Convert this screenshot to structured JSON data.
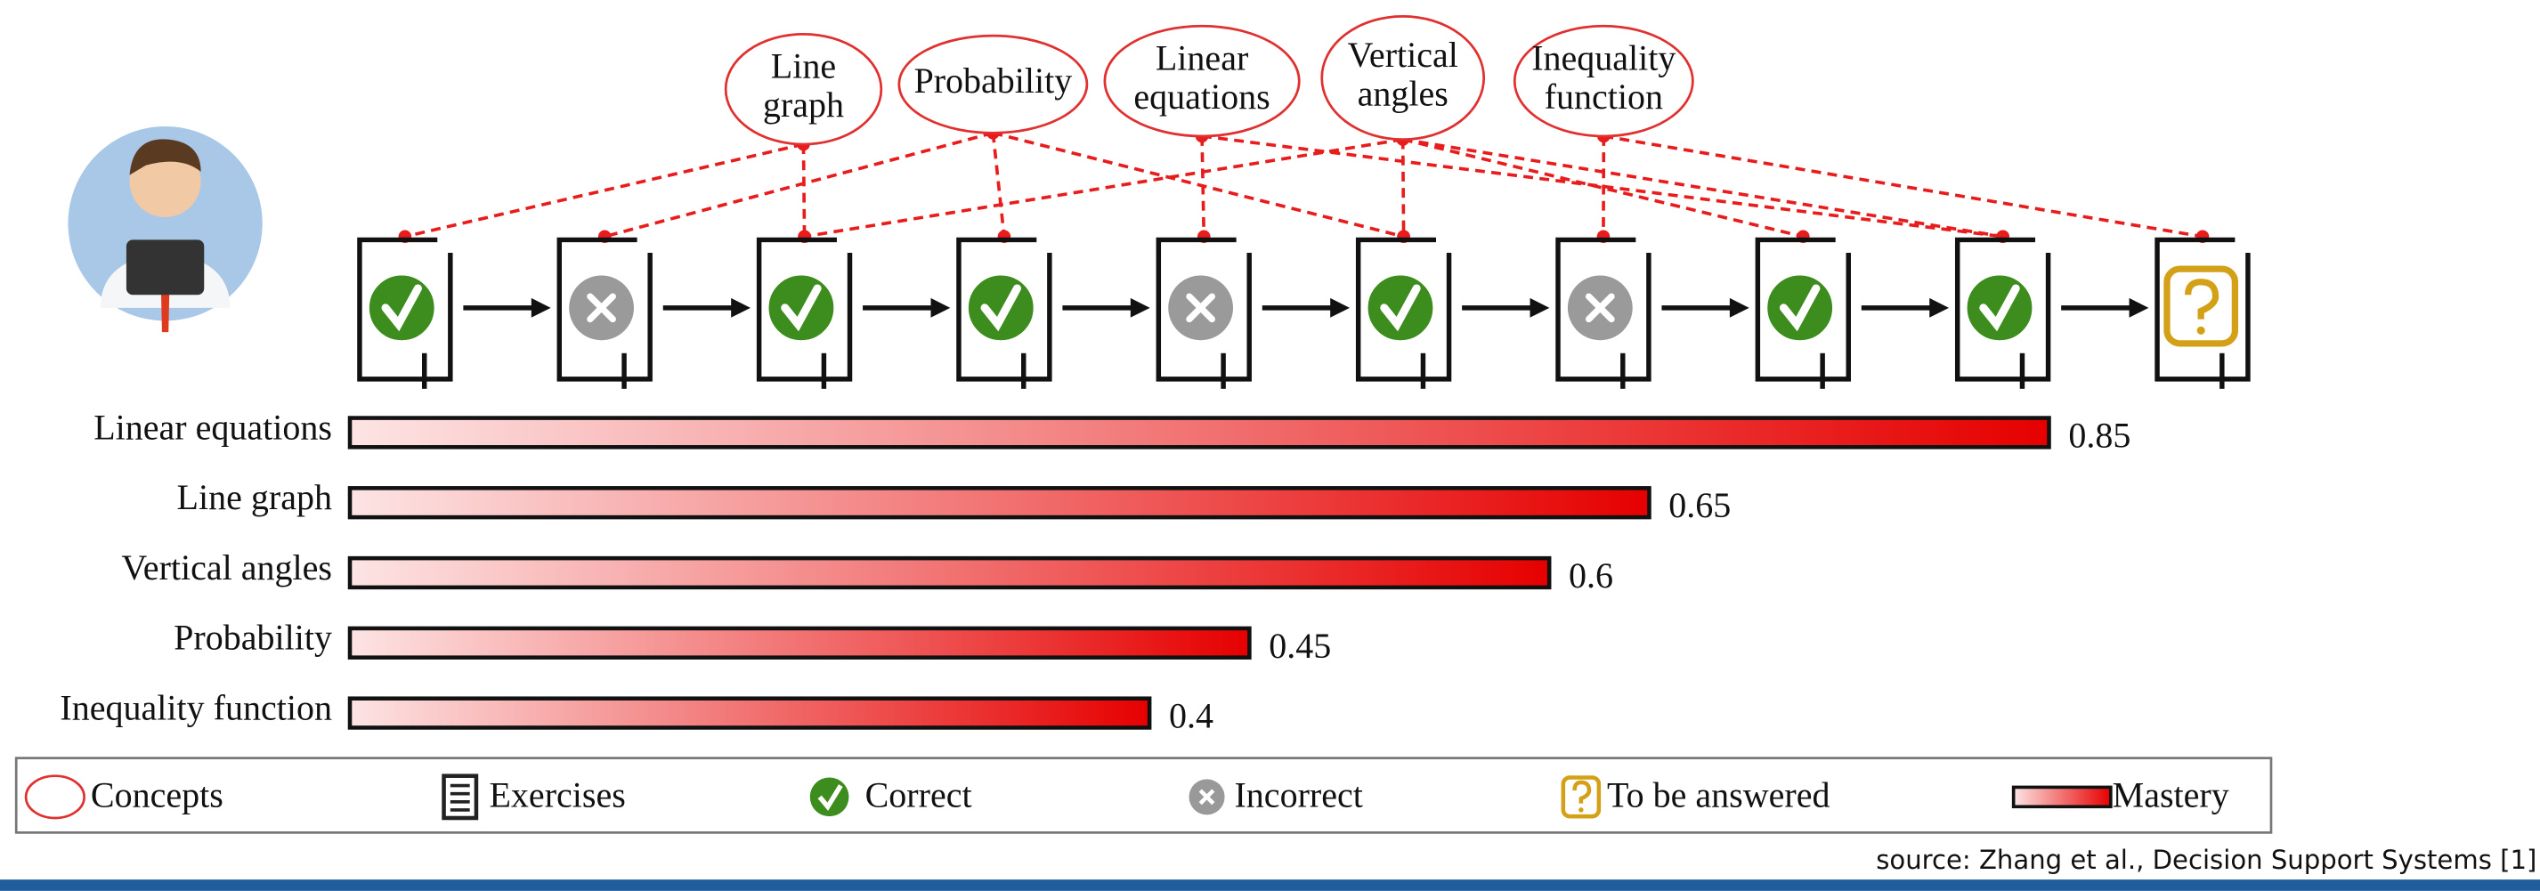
{
  "concepts": [
    {
      "lines": [
        "Line",
        "graph"
      ]
    },
    {
      "lines": [
        "Probability"
      ]
    },
    {
      "lines": [
        "Linear",
        "equations"
      ]
    },
    {
      "lines": [
        "Vertical",
        "angles"
      ]
    },
    {
      "lines": [
        "Inequality",
        "function"
      ]
    }
  ],
  "exercises": [
    "correct",
    "incorrect",
    "correct",
    "correct",
    "incorrect",
    "correct",
    "incorrect",
    "correct",
    "correct",
    "unanswered"
  ],
  "mastery": {
    "rows": [
      {
        "label": "Linear equations",
        "value": 0.85
      },
      {
        "label": "Line graph",
        "value": 0.65
      },
      {
        "label": "Vertical angles",
        "value": 0.6
      },
      {
        "label": "Probability",
        "value": 0.45
      },
      {
        "label": "Inequality function",
        "value": 0.4
      }
    ]
  },
  "legend": [
    "Concepts",
    "Exercises",
    "Correct",
    "Incorrect",
    "To be answered",
    "Mastery"
  ],
  "source": "source: Zhang et al., Decision Support Systems [1]"
}
